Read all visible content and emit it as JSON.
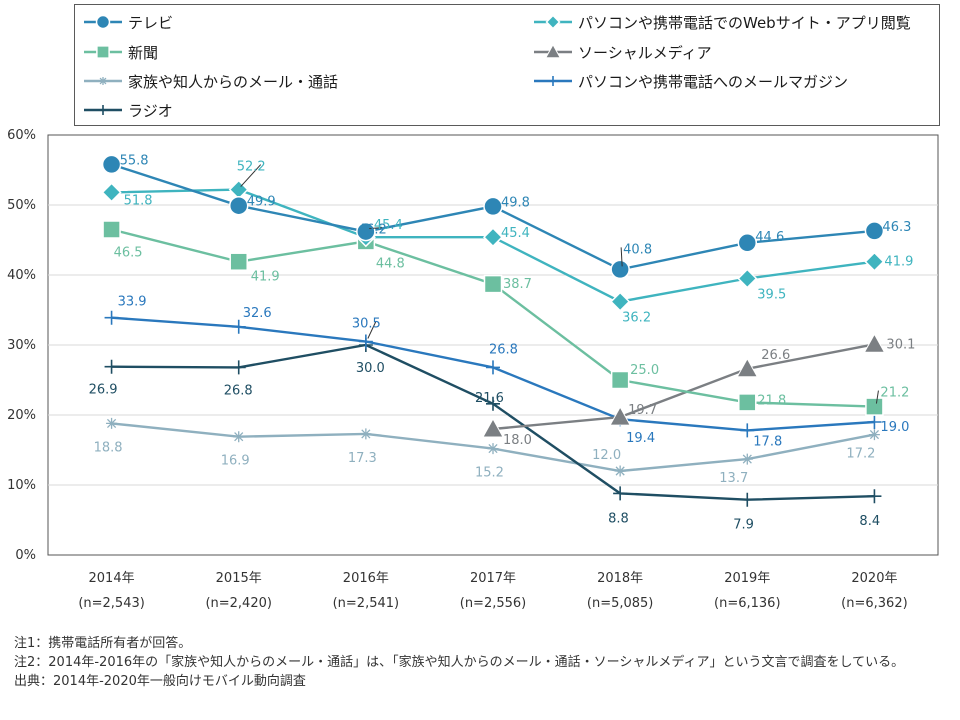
{
  "chart_data": {
    "type": "line",
    "categories": [
      "2014年",
      "2015年",
      "2016年",
      "2017年",
      "2018年",
      "2019年",
      "2020年"
    ],
    "category_sublabels": [
      "(n=2,543)",
      "(n=2,420)",
      "(n=2,541)",
      "(n=2,556)",
      "(n=5,085)",
      "(n=6,136)",
      "(n=6,362)"
    ],
    "y_ticks": [
      "0%",
      "10%",
      "20%",
      "30%",
      "40%",
      "50%",
      "60%"
    ],
    "ylim": [
      0,
      60
    ],
    "grid": true,
    "legend_position": "top",
    "series": [
      {
        "name": "テレビ",
        "color": "#2e86b5",
        "marker": "circle",
        "values": [
          55.8,
          49.9,
          46.2,
          49.8,
          40.8,
          44.6,
          46.3
        ]
      },
      {
        "name": "パソコンや携帯電話でのWebサイト・アプリ閲覧",
        "color": "#3fb4bf",
        "marker": "diamond",
        "values": [
          51.8,
          52.2,
          45.4,
          45.4,
          36.2,
          39.5,
          41.9
        ]
      },
      {
        "name": "新聞",
        "color": "#6cbfa0",
        "marker": "square",
        "values": [
          46.5,
          41.9,
          44.8,
          38.7,
          25.0,
          21.8,
          21.2
        ]
      },
      {
        "name": "ソーシャルメディア",
        "color": "#7b7f83",
        "marker": "triangle",
        "values": [
          null,
          null,
          null,
          18.0,
          19.7,
          26.6,
          30.1
        ]
      },
      {
        "name": "家族や知人からのメール・通話",
        "color": "#8fb0bf",
        "marker": "star",
        "values": [
          18.8,
          16.9,
          17.3,
          15.2,
          12.0,
          13.7,
          17.2
        ]
      },
      {
        "name": "パソコンや携帯電話へのメールマガジン",
        "color": "#2a78bd",
        "marker": "plus",
        "values": [
          33.9,
          32.6,
          30.5,
          26.8,
          19.4,
          17.8,
          19.0
        ]
      },
      {
        "name": "ラジオ",
        "color": "#1f4e63",
        "marker": "plus",
        "values": [
          26.9,
          26.8,
          30.0,
          21.6,
          8.8,
          7.9,
          8.4
        ]
      }
    ]
  },
  "notes": [
    "注1：携帯電話所有者が回答。",
    "注2：2014年-2016年の「家族や知人からのメール・通話」は、「家族や知人からのメール・通話・ソーシャルメディア」という文言で調査をしている。",
    "出典：2014年-2020年一般向けモバイル動向調査"
  ]
}
